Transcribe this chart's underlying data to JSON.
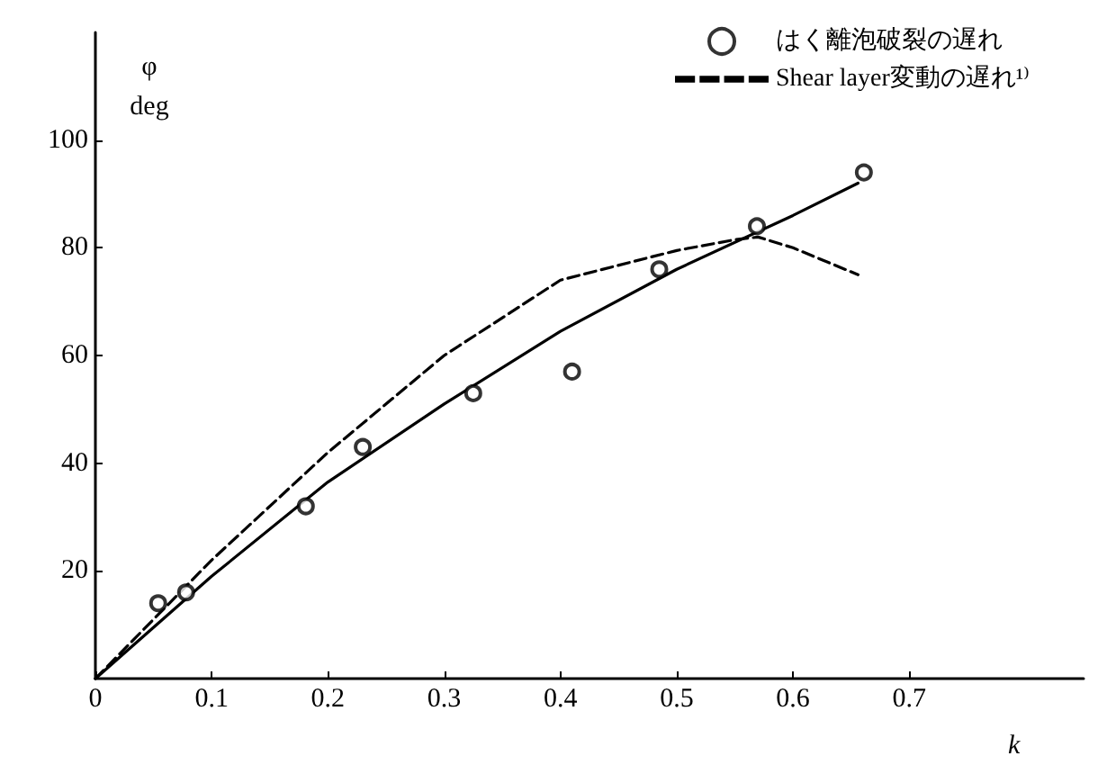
{
  "chart_data": {
    "type": "line",
    "xlabel": "k",
    "ylabel": "φ\ndeg",
    "xlim": [
      0,
      0.85
    ],
    "xticks": [
      0,
      0.1,
      0.2,
      0.3,
      0.4,
      0.5,
      0.6,
      0.7
    ],
    "ylim": [
      0,
      120
    ],
    "yticks": [
      20,
      40,
      60,
      80,
      100
    ],
    "grid": false,
    "legend": "top right",
    "series": [
      {
        "line_style": "solid",
        "marker": "none",
        "color": "#000000",
        "x": [
          0,
          0.1,
          0.2,
          0.3,
          0.4,
          0.5,
          0.6,
          0.656
        ],
        "values": [
          0,
          19,
          36.5,
          51,
          64.5,
          76,
          86,
          92
        ]
      },
      {
        "name": "はく離泡破裂の遅れ",
        "type": "scatter",
        "marker": "circle",
        "color": "#000000",
        "x": [
          0.054,
          0.078,
          0.181,
          0.23,
          0.325,
          0.41,
          0.485,
          0.569,
          0.661
        ],
        "values": [
          14,
          16,
          32,
          43,
          53,
          57,
          76,
          84,
          94
        ]
      },
      {
        "name": "Shear layer変動の遅れ¹⁾",
        "line_style": "dashed",
        "marker": "none",
        "color": "#000000",
        "x": [
          0,
          0.1,
          0.2,
          0.3,
          0.4,
          0.5,
          0.55,
          0.57,
          0.6,
          0.656
        ],
        "values": [
          0,
          22,
          42,
          60,
          74,
          79.5,
          81.5,
          82,
          80,
          75
        ]
      }
    ]
  }
}
